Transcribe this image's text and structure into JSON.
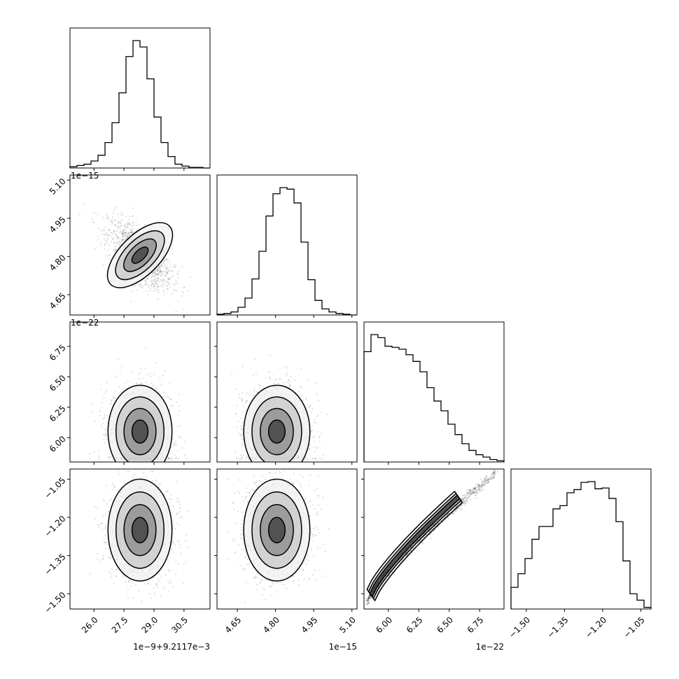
{
  "chart_data": {
    "type": "corner",
    "parameters": [
      {
        "offset_label": "1e−9+9.2117e−3",
        "range": [
          24.8,
          31.8
        ],
        "ticks": [
          26.0,
          27.5,
          29.0,
          30.5
        ],
        "tick_labels": [
          "26.0",
          "27.5",
          "29.0",
          "30.5"
        ]
      },
      {
        "offset_label": "1e−15",
        "range": [
          4.57,
          5.12
        ],
        "ticks": [
          4.65,
          4.8,
          4.95,
          5.1
        ],
        "tick_labels": [
          "4.65",
          "4.80",
          "4.95",
          "5.10"
        ]
      },
      {
        "offset_label": "1e−22",
        "range": [
          5.8,
          6.95
        ],
        "ticks": [
          6.0,
          6.25,
          6.5,
          6.75
        ],
        "tick_labels": [
          "6.00",
          "6.25",
          "6.50",
          "6.75"
        ]
      },
      {
        "offset_label": "",
        "range": [
          -1.56,
          -1.01
        ],
        "ticks": [
          -1.5,
          -1.35,
          -1.2,
          -1.05
        ],
        "tick_labels": [
          "−1.50",
          "−1.35",
          "−1.20",
          "−1.05"
        ]
      }
    ],
    "histograms": [
      [
        2,
        4,
        6,
        11,
        20,
        40,
        71,
        118,
        175,
        200,
        190,
        140,
        80,
        40,
        18,
        6,
        3,
        1,
        1,
        0
      ],
      [
        1,
        2,
        4,
        10,
        22,
        47,
        83,
        129,
        158,
        166,
        164,
        146,
        95,
        46,
        19,
        8,
        4,
        2,
        1,
        0
      ],
      [
        181,
        209,
        204,
        190,
        188,
        185,
        176,
        165,
        148,
        122,
        100,
        84,
        62,
        45,
        30,
        19,
        12,
        8,
        4,
        2
      ],
      [
        27,
        44,
        63,
        87,
        103,
        103,
        125,
        129,
        145,
        149,
        158,
        159,
        150,
        151,
        138,
        109,
        60,
        19,
        11,
        2
      ]
    ],
    "correlations": {
      "0-1": -0.62,
      "0-2": 0.0,
      "0-3": 0.0,
      "1-2": 0.0,
      "1-3": 0.0,
      "2-3": 0.98
    },
    "contour_levels": [
      "0.5σ",
      "1σ",
      "1.5σ",
      "2σ"
    ]
  }
}
